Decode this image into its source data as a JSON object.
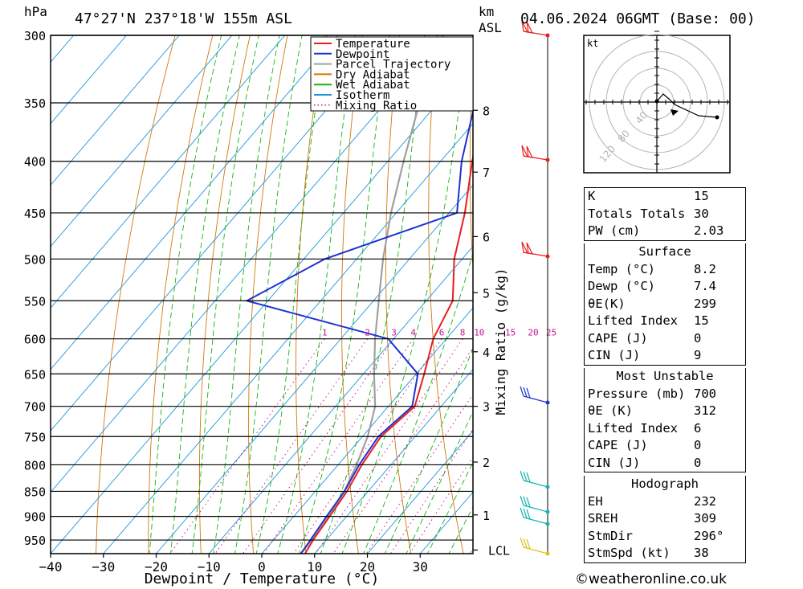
{
  "header": {
    "pressure_unit": "hPa",
    "location": "47°27'N  237°18'W  155m  ASL",
    "km_label": "km",
    "asl_label": "ASL",
    "datetime": "04.06.2024  06GMT  (Base: 00)"
  },
  "legend": [
    {
      "label": "Temperature",
      "color": "#e81e1e",
      "style": "solid"
    },
    {
      "label": "Dewpoint",
      "color": "#1e32d2",
      "style": "solid"
    },
    {
      "label": "Parcel Trajectory",
      "color": "#a0a0a0",
      "style": "solid"
    },
    {
      "label": "Dry Adiabat",
      "color": "#d2780a",
      "style": "solid"
    },
    {
      "label": "Wet Adiabat",
      "color": "#14b414",
      "style": "solid"
    },
    {
      "label": "Isotherm",
      "color": "#1e96dc",
      "style": "solid"
    },
    {
      "label": "Mixing Ratio",
      "color": "#c8148c",
      "style": "dotted"
    }
  ],
  "chart_data": {
    "type": "line",
    "title": "47°27'N  237°18'W  155m  ASL",
    "xlabel": "Dewpoint / Temperature (°C)",
    "ylabel": "hPa",
    "xlim": [
      -40,
      40
    ],
    "ylim": [
      980,
      300
    ],
    "x_ticks": [
      -40,
      -30,
      -20,
      -10,
      0,
      10,
      20,
      30
    ],
    "pressure_levels": [
      300,
      350,
      400,
      450,
      500,
      550,
      600,
      650,
      700,
      750,
      800,
      850,
      900,
      950
    ],
    "height_km": [
      {
        "label": "8",
        "p": 356
      },
      {
        "label": "7",
        "p": 410
      },
      {
        "label": "6",
        "p": 475
      },
      {
        "label": "5",
        "p": 540
      },
      {
        "label": "4",
        "p": 618
      },
      {
        "label": "3",
        "p": 700
      },
      {
        "label": "2",
        "p": 795
      },
      {
        "label": "1",
        "p": 897
      },
      {
        "label": "LCL",
        "p": 972
      }
    ],
    "mixing_ratio_axis_label": "Mixing Ratio (g/kg)",
    "mixing_ratio_labels": [
      "1",
      "2",
      "3",
      "4",
      "6",
      "8",
      "10",
      "15",
      "20",
      "25"
    ],
    "series": [
      {
        "name": "Temperature",
        "color": "#e81e1e",
        "points": [
          [
            300,
            -40
          ],
          [
            350,
            -31.5
          ],
          [
            400,
            -24
          ],
          [
            450,
            -17
          ],
          [
            500,
            -11.5
          ],
          [
            550,
            -5
          ],
          [
            600,
            -2.5
          ],
          [
            650,
            1.5
          ],
          [
            700,
            5
          ],
          [
            750,
            3.5
          ],
          [
            800,
            4.5
          ],
          [
            850,
            6
          ],
          [
            900,
            6.8
          ],
          [
            950,
            7.5
          ],
          [
            980,
            8.2
          ]
        ]
      },
      {
        "name": "Dewpoint",
        "color": "#1e32d2",
        "points": [
          [
            300,
            -40
          ],
          [
            350,
            -33
          ],
          [
            400,
            -26
          ],
          [
            450,
            -18.5
          ],
          [
            500,
            -36
          ],
          [
            550,
            -44
          ],
          [
            600,
            -11
          ],
          [
            650,
            0.3
          ],
          [
            700,
            4.5
          ],
          [
            750,
            3
          ],
          [
            800,
            4
          ],
          [
            850,
            5.5
          ],
          [
            900,
            6.2
          ],
          [
            950,
            7
          ],
          [
            980,
            7.4
          ]
        ]
      },
      {
        "name": "Parcel Trajectory",
        "color": "#a0a0a0",
        "points": [
          [
            300,
            -50
          ],
          [
            350,
            -43.5
          ],
          [
            400,
            -37
          ],
          [
            450,
            -31
          ],
          [
            500,
            -25
          ],
          [
            550,
            -19
          ],
          [
            600,
            -13.5
          ],
          [
            650,
            -8
          ],
          [
            700,
            -2.5
          ],
          [
            750,
            1
          ],
          [
            800,
            3.5
          ],
          [
            850,
            5.5
          ],
          [
            900,
            6.5
          ],
          [
            950,
            7.2
          ],
          [
            980,
            7.4
          ]
        ]
      }
    ]
  },
  "stats": {
    "top": [
      {
        "label": "K",
        "value": "15"
      },
      {
        "label": "Totals Totals",
        "value": "30"
      },
      {
        "label": "PW (cm)",
        "value": "2.03"
      }
    ],
    "surface": {
      "title": "Surface",
      "rows": [
        {
          "label": "Temp (°C)",
          "value": "8.2"
        },
        {
          "label": "Dewp (°C)",
          "value": "7.4"
        },
        {
          "label": "θE(K)",
          "value": "299"
        },
        {
          "label": "Lifted Index",
          "value": "15"
        },
        {
          "label": "CAPE (J)",
          "value": "0"
        },
        {
          "label": "CIN (J)",
          "value": "9"
        }
      ]
    },
    "most_unstable": {
      "title": "Most Unstable",
      "rows": [
        {
          "label": "Pressure (mb)",
          "value": "700"
        },
        {
          "label": "θE (K)",
          "value": "312"
        },
        {
          "label": "Lifted Index",
          "value": "6"
        },
        {
          "label": "CAPE (J)",
          "value": "0"
        },
        {
          "label": "CIN (J)",
          "value": "0"
        }
      ]
    },
    "hodograph": {
      "title": "Hodograph",
      "rows": [
        {
          "label": "EH",
          "value": "232"
        },
        {
          "label": "SREH",
          "value": "309"
        },
        {
          "label": "StmDir",
          "value": "296°"
        },
        {
          "label": "StmSpd (kt)",
          "value": "38"
        }
      ]
    }
  },
  "hodograph_plot": {
    "unit_label": "kt",
    "ring_labels": [
      "40",
      "80",
      "120"
    ]
  },
  "credit": "©weatheronline.co.uk"
}
